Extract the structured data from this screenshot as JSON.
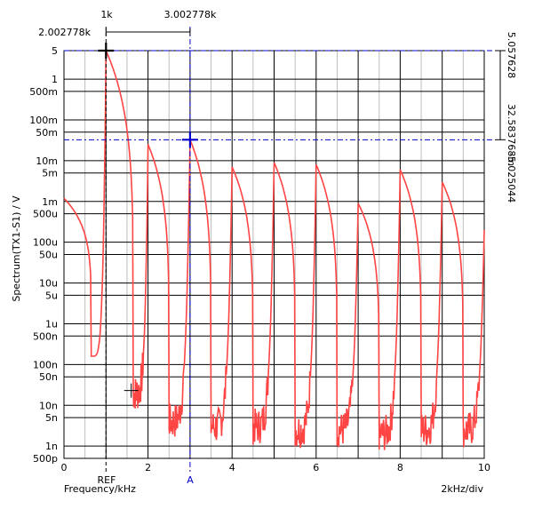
{
  "chart_data": {
    "type": "line",
    "ylabel": "Spectrum(TX1-S1) / V",
    "xlabel": "Frequency/kHz",
    "x_div_label": "2kHz/div",
    "xlim": [
      0,
      10
    ],
    "ylim": [
      5e-10,
      5
    ],
    "yscale": "log",
    "x_ticks": [
      "0",
      "2",
      "4",
      "6",
      "8",
      "10"
    ],
    "x_tick_values": [
      0,
      2,
      4,
      6,
      8,
      10
    ],
    "y_ticks": [
      {
        "v": 5,
        "label": "5"
      },
      {
        "v": 1,
        "label": "1"
      },
      {
        "v": 0.5,
        "label": "500m"
      },
      {
        "v": 0.1,
        "label": "100m"
      },
      {
        "v": 0.05,
        "label": "50m"
      },
      {
        "v": 0.01,
        "label": "10m"
      },
      {
        "v": 0.005,
        "label": "5m"
      },
      {
        "v": 0.001,
        "label": "1m"
      },
      {
        "v": 0.0005,
        "label": "500u"
      },
      {
        "v": 0.0001,
        "label": "100u"
      },
      {
        "v": 5e-05,
        "label": "50u"
      },
      {
        "v": 1e-05,
        "label": "10u"
      },
      {
        "v": 5e-06,
        "label": "5u"
      },
      {
        "v": 1e-06,
        "label": "1u"
      },
      {
        "v": 5e-07,
        "label": "500n"
      },
      {
        "v": 1e-07,
        "label": "100n"
      },
      {
        "v": 5e-08,
        "label": "50n"
      },
      {
        "v": 1e-08,
        "label": "10n"
      },
      {
        "v": 5e-09,
        "label": "5n"
      },
      {
        "v": 1e-09,
        "label": "1n"
      },
      {
        "v": 5e-10,
        "label": "500p"
      }
    ],
    "peaks": [
      {
        "x": 0.0,
        "y": 0.0012
      },
      {
        "x": 1.0,
        "y": 5.0
      },
      {
        "x": 2.0,
        "y": 0.025
      },
      {
        "x": 3.0,
        "y": 0.0326
      },
      {
        "x": 4.0,
        "y": 0.007
      },
      {
        "x": 5.0,
        "y": 0.009
      },
      {
        "x": 6.0,
        "y": 0.008
      },
      {
        "x": 7.0,
        "y": 0.0009
      },
      {
        "x": 8.0,
        "y": 0.006
      },
      {
        "x": 9.0,
        "y": 0.003
      },
      {
        "x": 10.0,
        "y": 0.0002
      }
    ],
    "valleys": [
      {
        "x": 0.65,
        "y": 1.6e-07
      },
      {
        "x": 1.65,
        "y": 2e-08
      },
      {
        "x": 2.5,
        "y": 4e-09
      },
      {
        "x": 3.5,
        "y": 3e-09
      },
      {
        "x": 4.5,
        "y": 3e-09
      },
      {
        "x": 5.5,
        "y": 2.5e-09
      },
      {
        "x": 6.5,
        "y": 2.5e-09
      },
      {
        "x": 7.5,
        "y": 2e-09
      },
      {
        "x": 8.5,
        "y": 2.5e-09
      },
      {
        "x": 9.5,
        "y": 2.5e-09
      }
    ],
    "series_color": "#ff4444",
    "ref_marker": {
      "x": 1.0,
      "y": 5.0,
      "label": "REF",
      "color": "#000000"
    },
    "a_marker": {
      "x": 3.0,
      "y": 0.0326,
      "label": "A",
      "color": "#0000cc"
    },
    "aux_marker": {
      "x": 1.6,
      "y": 2.3e-08
    },
    "cursor_labels": {
      "ref_x": "1k",
      "a_x": "3.002778k",
      "delta_x": "2.002778k",
      "ref_y": "5.057628",
      "a_y": "32.583768m",
      "delta_y": "-5.025044"
    }
  }
}
